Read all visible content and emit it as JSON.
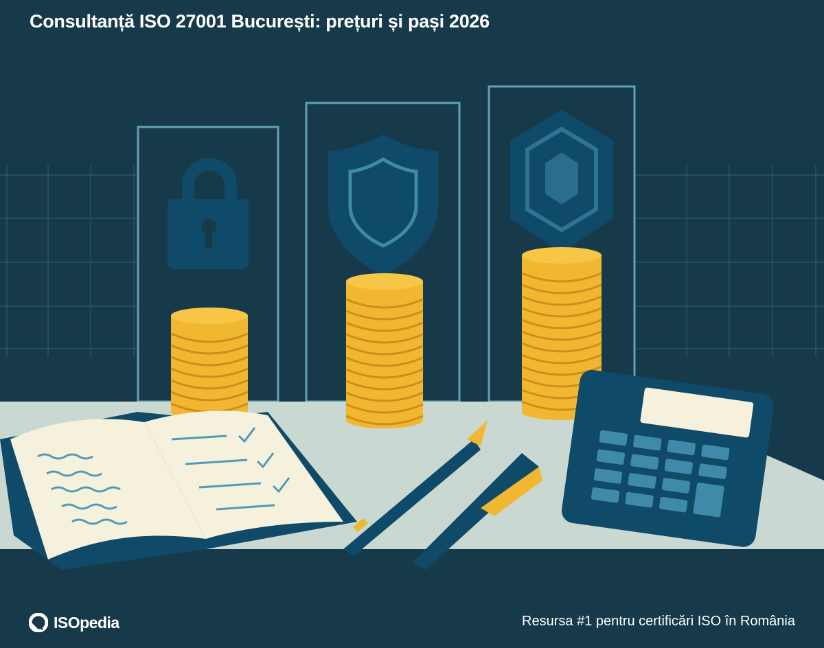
{
  "header": {
    "title": "Consultanță ISO 27001 București: prețuri și pași 2026"
  },
  "illustration": {
    "icons": [
      "padlock-icon",
      "shield-icon",
      "hexagon-badge-icon",
      "coin-stack-icon",
      "notebook-icon",
      "fountain-pen-icon",
      "pen-icon",
      "calculator-icon"
    ],
    "colors": {
      "background": "#173a4b",
      "accent": "#5fa3b5",
      "coin": "#f2b731",
      "table": "#c9d8d0",
      "navy": "#0f4a68"
    }
  },
  "footer": {
    "brand": "ISOpedia",
    "tagline": "Resursa #1 pentru certificări ISO în România"
  }
}
